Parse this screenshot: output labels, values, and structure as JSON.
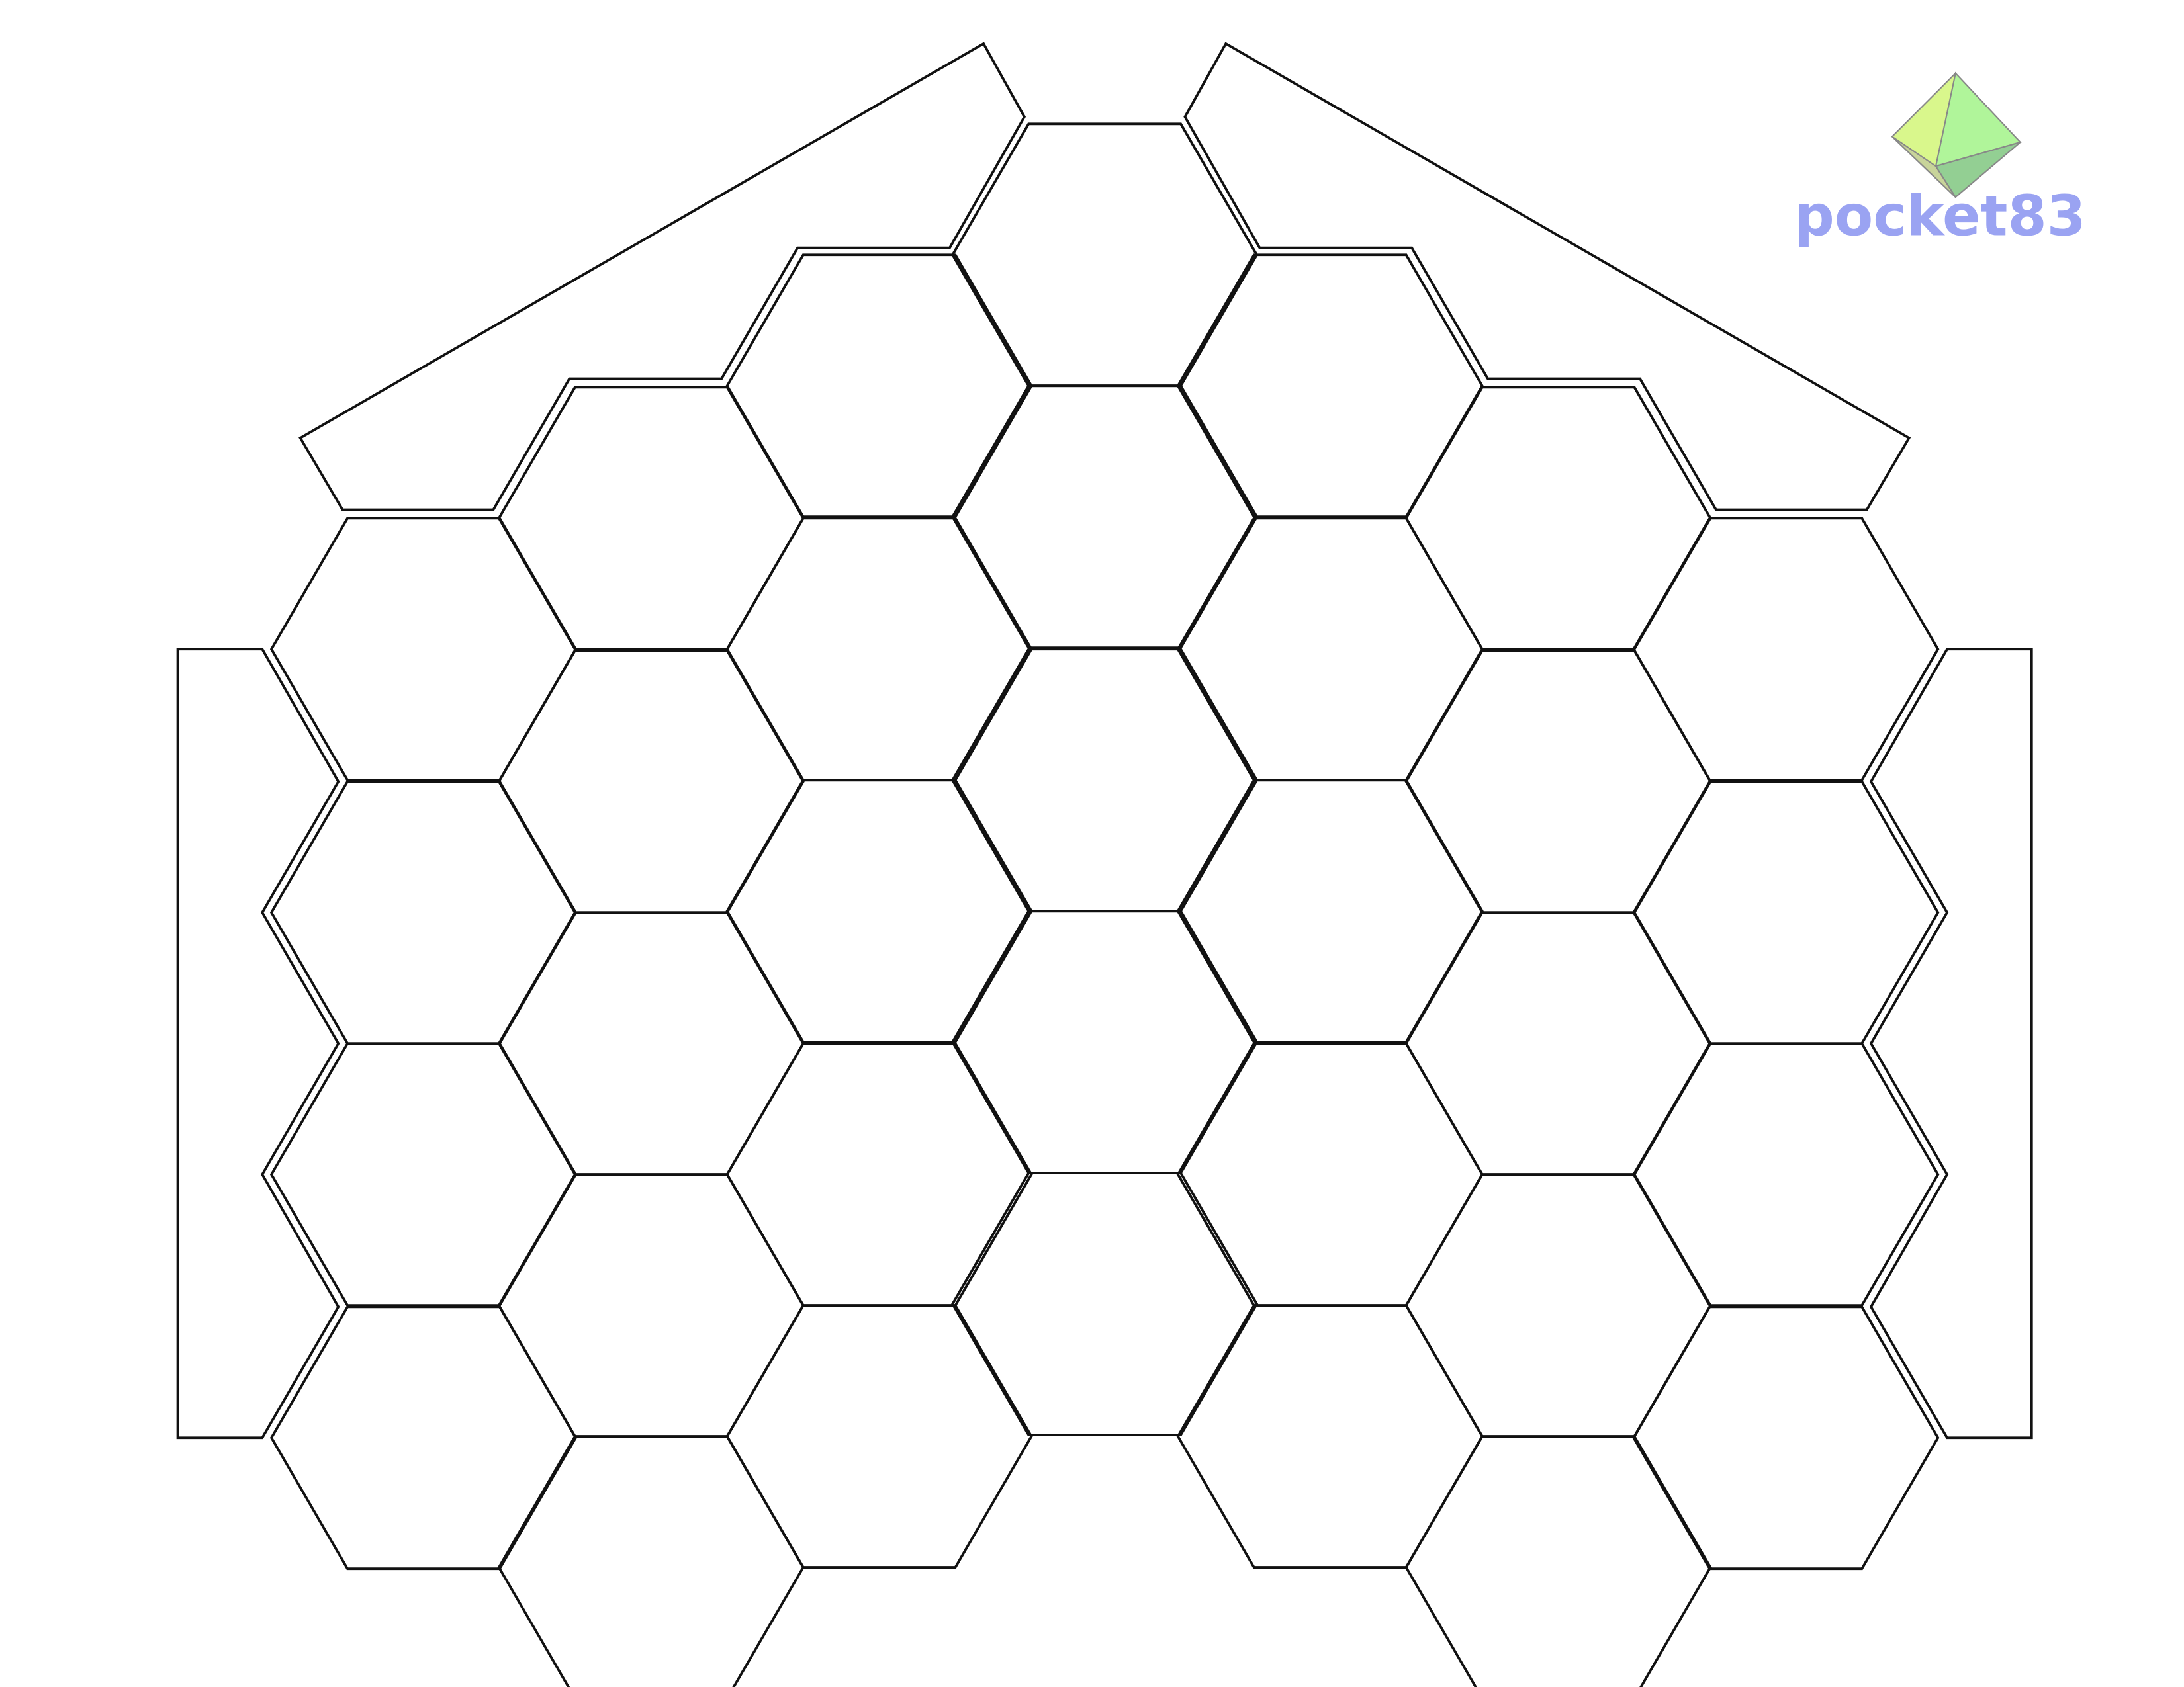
{
  "logo": {
    "text": "pocket83"
  }
}
